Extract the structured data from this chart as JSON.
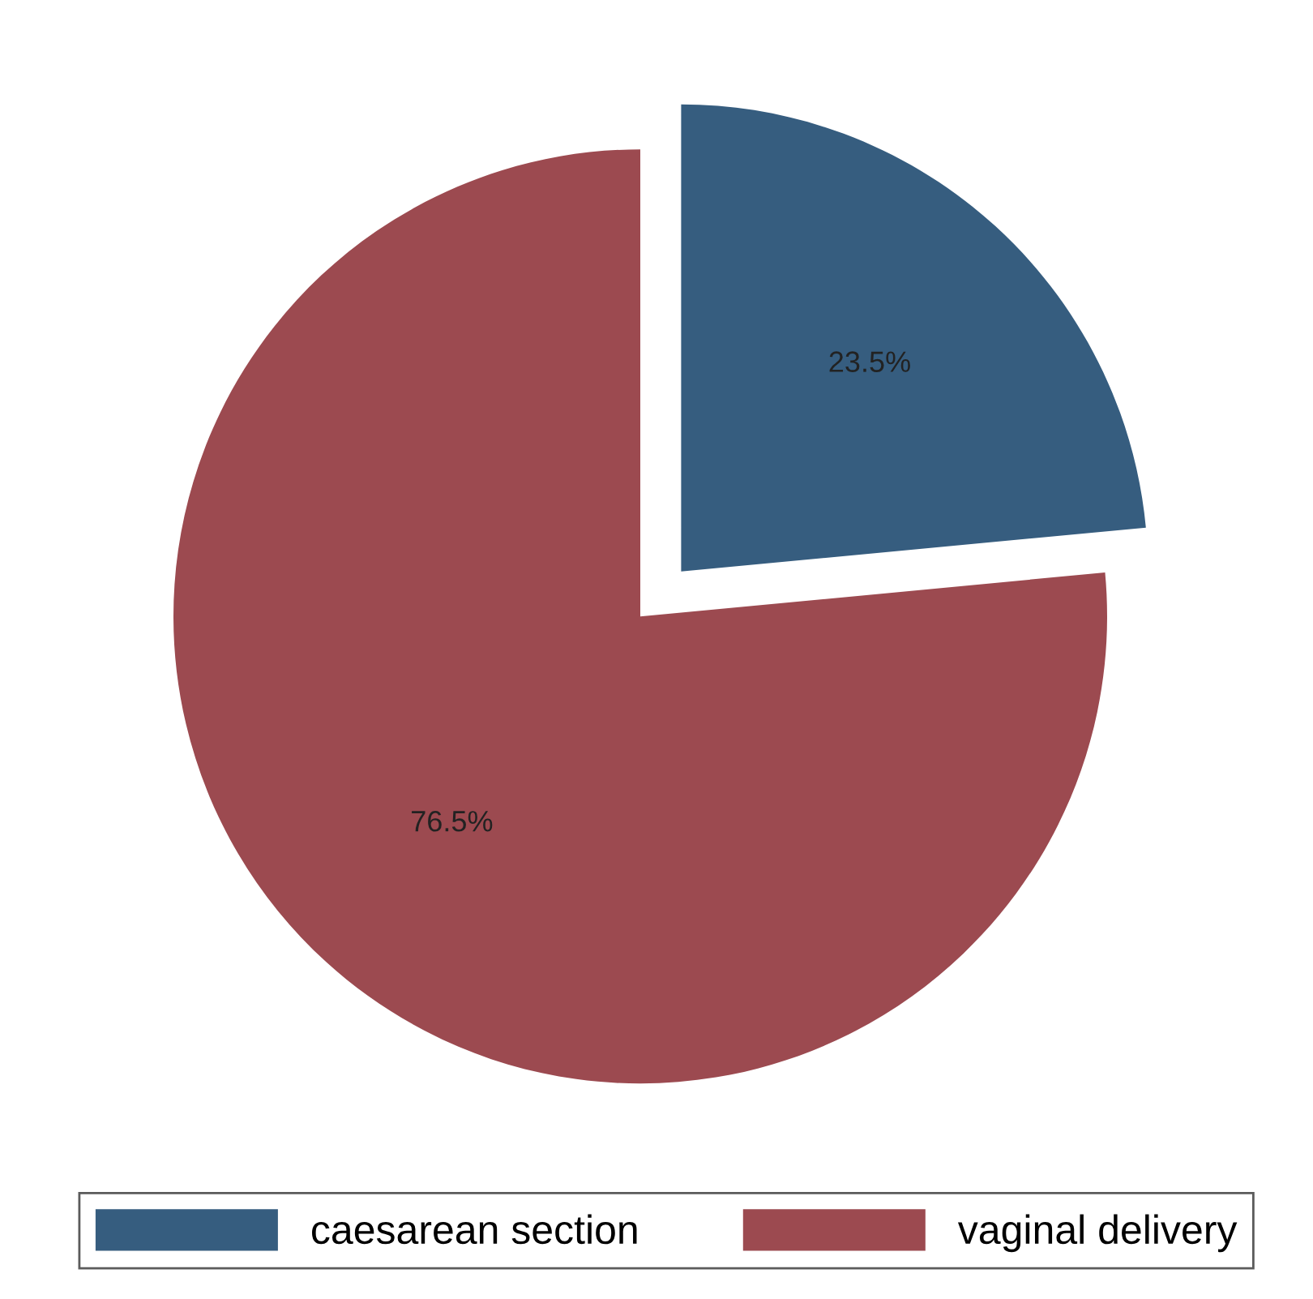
{
  "chart_data": {
    "type": "pie",
    "categories": [
      "caesarean section",
      "vaginal delivery"
    ],
    "values": [
      23.5,
      76.5
    ],
    "colors": [
      "#365d7f",
      "#9c4a50"
    ],
    "value_labels": [
      "23.5%",
      "76.5%"
    ],
    "legend": "bottom"
  }
}
